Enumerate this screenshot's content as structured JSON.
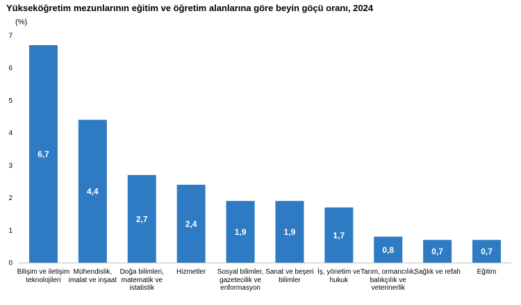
{
  "chart_data": {
    "type": "bar",
    "title": "Yükseköğretim mezunlarının eğitim ve öğretim alanlarına göre beyin göçü oranı, 2024",
    "ylabel": "(%)",
    "xlabel": "",
    "ylim": [
      0,
      7
    ],
    "yticks": [
      "0",
      "1",
      "2",
      "3",
      "4",
      "5",
      "6",
      "7"
    ],
    "grid": false,
    "categories": [
      "Bilişim ve iletişim teknolojileri",
      "Mühendislik, imalat ve inşaat",
      "Doğa bilimleri, matematik ve istatistik",
      "Hizmetler",
      "Sosyal bilimler, gazetecilik ve enformasyon",
      "Sanat ve beşeri bilimler",
      "İş, yönetim ve hukuk",
      "Tarım, ormancılık, balıkçılık ve veterinerlik",
      "Sağlık ve refah",
      "Eğitim"
    ],
    "values": [
      6.7,
      4.4,
      2.7,
      2.4,
      1.9,
      1.9,
      1.7,
      0.8,
      0.7,
      0.7
    ],
    "value_labels": [
      "6,7",
      "4,4",
      "2,7",
      "2,4",
      "1,9",
      "1,9",
      "1,7",
      "0,8",
      "0,7",
      "0,7"
    ],
    "bar_color": "#2e7bc4",
    "value_label_color": "#ffffff"
  }
}
